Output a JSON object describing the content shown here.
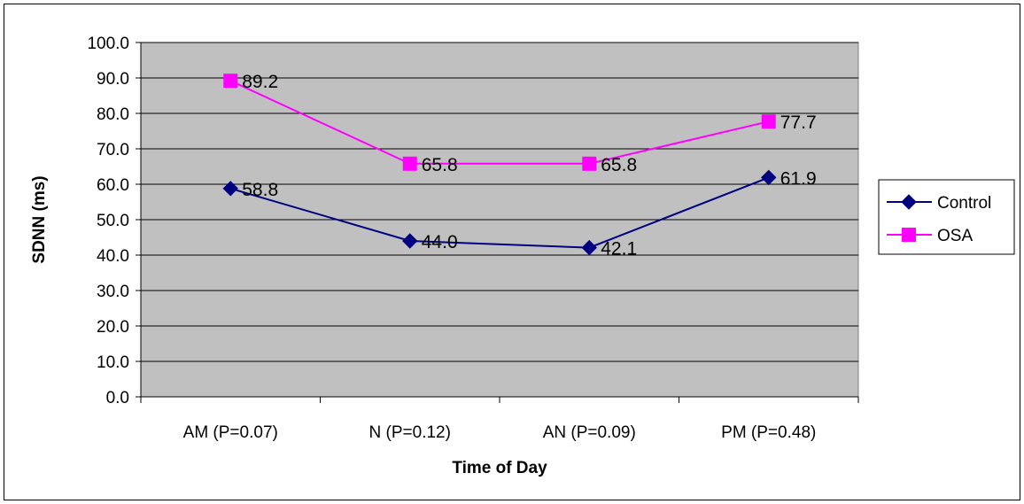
{
  "chart_data": {
    "type": "line",
    "title": "",
    "xlabel": "Time of Day",
    "ylabel": "SDNN (ms)",
    "categories": [
      "AM (P=0.07)",
      "N (P=0.12)",
      "AN (P=0.09)",
      "PM (P=0.48)"
    ],
    "ylim": [
      0,
      100
    ],
    "ytick_step": 10,
    "ytick_labels": [
      "0.0",
      "10.0",
      "20.0",
      "30.0",
      "40.0",
      "50.0",
      "60.0",
      "70.0",
      "80.0",
      "90.0",
      "100.0"
    ],
    "grid": true,
    "plot_background": "#c0c0c0",
    "legend_position": "right",
    "series": [
      {
        "name": "Control",
        "values": [
          58.8,
          44.0,
          42.1,
          61.9
        ],
        "labels": [
          "58.8",
          "44.0",
          "42.1",
          "61.9"
        ],
        "color": "#000080",
        "marker": "diamond"
      },
      {
        "name": "OSA",
        "values": [
          89.2,
          65.8,
          65.8,
          77.7
        ],
        "labels": [
          "89.2",
          "65.8",
          "65.8",
          "77.7"
        ],
        "color": "#ff00ff",
        "marker": "square"
      }
    ]
  }
}
